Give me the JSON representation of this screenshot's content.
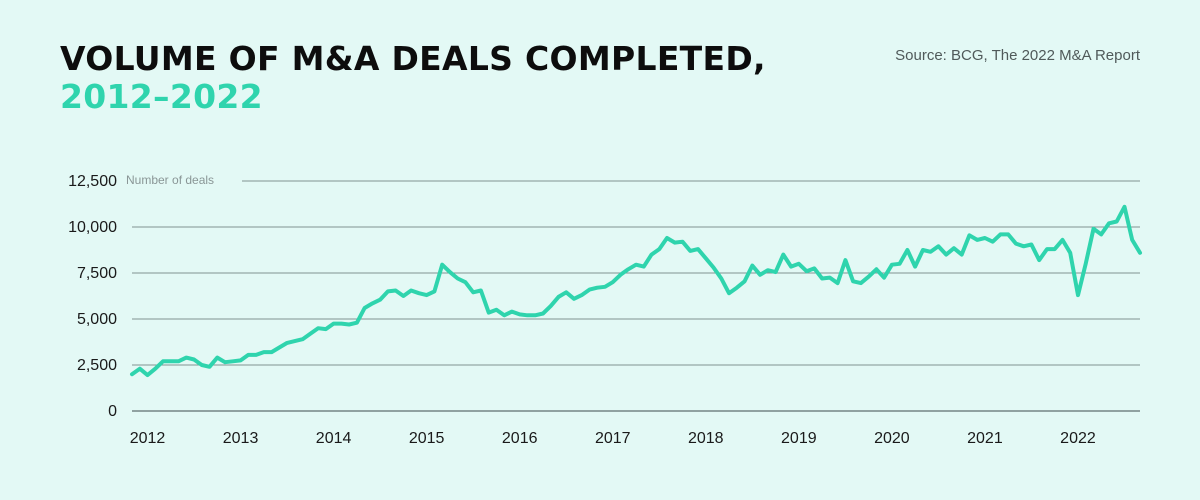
{
  "header": {
    "title_line1": "VOLUME OF M&A DEALS COMPLETED,",
    "title_line2": "2012–2022",
    "source": "Source: BCG, The 2022 M&A Report"
  },
  "colors": {
    "line": "#2fd4ad",
    "grid": "#5f6f6f",
    "title_accent": "#2fd4ad",
    "background": "#e3f9f5"
  },
  "chart_data": {
    "type": "line",
    "title": "VOLUME OF M&A DEALS COMPLETED, 2012–2022",
    "ylabel": "Number of deals",
    "xlabel": "",
    "ylim": [
      0,
      12500
    ],
    "yticks": [
      0,
      2500,
      5000,
      7500,
      10000,
      12500
    ],
    "ytick_labels": [
      "0",
      "2,500",
      "5,000",
      "7,500",
      "10,000",
      "12,500"
    ],
    "xticks": [
      "2012",
      "2013",
      "2014",
      "2015",
      "2016",
      "2017",
      "2018",
      "2019",
      "2020",
      "2021",
      "2022"
    ],
    "grid": "horizontal",
    "series": [
      {
        "values": [
          2000,
          2300,
          1950,
          2300,
          2700,
          2700,
          2700,
          2900,
          2800,
          2500,
          2400,
          2900,
          2650,
          2700,
          2750,
          3050,
          3050,
          3200,
          3200,
          3450,
          3700,
          3800,
          3900,
          4200,
          4500,
          4450,
          4750,
          4750,
          4700,
          4800,
          5600,
          5850,
          6050,
          6500,
          6550,
          6250,
          6550,
          6400,
          6300,
          6500,
          7950,
          7550,
          7200,
          7000,
          6450,
          6550,
          5350,
          5500,
          5200,
          5400,
          5250,
          5200,
          5200,
          5300,
          5700,
          6200,
          6450,
          6100,
          6300,
          6600,
          6700,
          6750,
          7000,
          7400,
          7700,
          7950,
          7850,
          8500,
          8800,
          9400,
          9150,
          9200,
          8700,
          8800,
          8300,
          7800,
          7200,
          6400,
          6700,
          7050,
          7900,
          7400,
          7650,
          7550,
          8500,
          7850,
          8000,
          7600,
          7750,
          7200,
          7250,
          6950,
          8200,
          7050,
          6950,
          7300,
          7700,
          7250,
          7950,
          8000,
          8750,
          7850,
          8750,
          8650,
          8950,
          8500,
          8850,
          8500,
          9550,
          9300,
          9400,
          9200,
          9600,
          9600,
          9100,
          8950,
          9050,
          8200,
          8800,
          8800,
          9300,
          8600,
          6300,
          8000,
          9900,
          9600,
          10200,
          10300,
          11100,
          9300,
          8600
        ]
      }
    ]
  }
}
